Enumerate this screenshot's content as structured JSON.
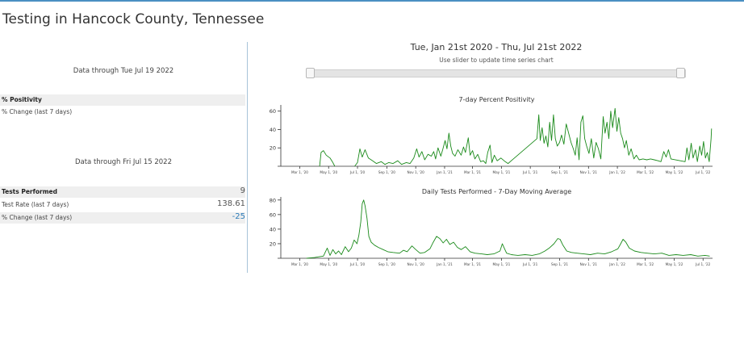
{
  "page": {
    "title": "Testing in Hancock County, Tennessee"
  },
  "positivity_panel": {
    "as_of": "Data through Tue Jul 19 2022",
    "rows": [
      {
        "label": "% Positivity",
        "value": ""
      },
      {
        "label": "% Change (last 7 days)",
        "value": ""
      }
    ]
  },
  "tests_panel": {
    "as_of": "Data through Fri Jul 15 2022",
    "rows": [
      {
        "label": "Tests Performed",
        "value": "9"
      },
      {
        "label": "Test Rate (last 7 days)",
        "value": "138.61"
      },
      {
        "label": "% Change (last 7 days)",
        "value": "-25"
      }
    ]
  },
  "time_range": {
    "label": "Tue, Jan 21st 2020 - Thu, Jul 21st 2022",
    "hint": "Use slider to update time series chart"
  },
  "colors": {
    "line": "#1a8a1a",
    "accent": "#2b7bb9"
  },
  "chart_data": [
    {
      "type": "line",
      "title": "7-day Percent Positivity",
      "xlabel": "",
      "ylabel": "",
      "x_ticks": [
        "Mar 1, '20",
        "May 1, '20",
        "Jul 1, '20",
        "Sep 1, '20",
        "Nov 1, '20",
        "Jan 1, '21",
        "Mar 1, '21",
        "May 1, '21",
        "Jul 1, '21",
        "Sep 1, '21",
        "Nov 1, '21",
        "Jan 1, '22",
        "Mar 1, '22",
        "May 1, '22",
        "Jul 1, '22"
      ],
      "y_ticks": [
        "20",
        "40",
        "60"
      ],
      "x_range": [
        "2020-01-21",
        "2022-07-21"
      ],
      "ylim": [
        0,
        65
      ],
      "series": [
        {
          "points": [
            [
              "2020-04-12",
              0
            ],
            [
              "2020-04-15",
              15
            ],
            [
              "2020-04-20",
              17
            ],
            [
              "2020-04-26",
              12
            ],
            [
              "2020-05-04",
              9
            ],
            [
              "2020-05-10",
              4
            ],
            [
              "2020-05-14",
              0
            ],
            [
              "2020-06-25",
              0
            ],
            [
              "2020-07-01",
              4
            ],
            [
              "2020-07-06",
              19
            ],
            [
              "2020-07-11",
              10
            ],
            [
              "2020-07-17",
              18
            ],
            [
              "2020-07-24",
              9
            ],
            [
              "2020-08-02",
              6
            ],
            [
              "2020-08-10",
              3
            ],
            [
              "2020-08-20",
              5
            ],
            [
              "2020-08-28",
              2
            ],
            [
              "2020-09-05",
              4
            ],
            [
              "2020-09-14",
              3
            ],
            [
              "2020-09-24",
              6
            ],
            [
              "2020-10-02",
              2
            ],
            [
              "2020-10-12",
              4
            ],
            [
              "2020-10-20",
              3
            ],
            [
              "2020-10-28",
              9
            ],
            [
              "2020-11-03",
              19
            ],
            [
              "2020-11-08",
              10
            ],
            [
              "2020-11-14",
              16
            ],
            [
              "2020-11-20",
              7
            ],
            [
              "2020-11-27",
              13
            ],
            [
              "2020-12-04",
              11
            ],
            [
              "2020-12-09",
              16
            ],
            [
              "2020-12-13",
              8
            ],
            [
              "2020-12-18",
              20
            ],
            [
              "2020-12-24",
              11
            ],
            [
              "2020-12-28",
              18
            ],
            [
              "2021-01-02",
              28
            ],
            [
              "2021-01-06",
              19
            ],
            [
              "2021-01-10",
              36
            ],
            [
              "2021-01-14",
              22
            ],
            [
              "2021-01-18",
              14
            ],
            [
              "2021-01-23",
              11
            ],
            [
              "2021-01-29",
              18
            ],
            [
              "2021-02-05",
              12
            ],
            [
              "2021-02-10",
              21
            ],
            [
              "2021-02-14",
              15
            ],
            [
              "2021-02-20",
              31
            ],
            [
              "2021-02-24",
              12
            ],
            [
              "2021-03-01",
              17
            ],
            [
              "2021-03-06",
              8
            ],
            [
              "2021-03-12",
              13
            ],
            [
              "2021-03-18",
              5
            ],
            [
              "2021-03-24",
              6
            ],
            [
              "2021-03-29",
              3
            ],
            [
              "2021-04-02",
              15
            ],
            [
              "2021-04-07",
              23
            ],
            [
              "2021-04-11",
              4
            ],
            [
              "2021-04-16",
              12
            ],
            [
              "2021-04-22",
              6
            ],
            [
              "2021-04-30",
              9
            ],
            [
              "2021-05-09",
              5
            ],
            [
              "2021-05-15",
              3
            ],
            [
              "2021-07-15",
              30
            ],
            [
              "2021-07-19",
              56
            ],
            [
              "2021-07-22",
              28
            ],
            [
              "2021-07-26",
              42
            ],
            [
              "2021-07-30",
              25
            ],
            [
              "2021-08-03",
              33
            ],
            [
              "2021-08-07",
              21
            ],
            [
              "2021-08-11",
              48
            ],
            [
              "2021-08-15",
              28
            ],
            [
              "2021-08-19",
              56
            ],
            [
              "2021-08-23",
              30
            ],
            [
              "2021-08-27",
              22
            ],
            [
              "2021-09-01",
              26
            ],
            [
              "2021-09-05",
              34
            ],
            [
              "2021-09-10",
              24
            ],
            [
              "2021-09-15",
              46
            ],
            [
              "2021-09-20",
              36
            ],
            [
              "2021-09-25",
              26
            ],
            [
              "2021-09-30",
              19
            ],
            [
              "2021-10-04",
              12
            ],
            [
              "2021-10-08",
              31
            ],
            [
              "2021-10-12",
              7
            ],
            [
              "2021-10-16",
              48
            ],
            [
              "2021-10-20",
              55
            ],
            [
              "2021-10-24",
              30
            ],
            [
              "2021-10-28",
              22
            ],
            [
              "2021-11-02",
              14
            ],
            [
              "2021-11-07",
              30
            ],
            [
              "2021-11-12",
              9
            ],
            [
              "2021-11-17",
              26
            ],
            [
              "2021-11-22",
              19
            ],
            [
              "2021-11-27",
              8
            ],
            [
              "2021-12-02",
              54
            ],
            [
              "2021-12-06",
              36
            ],
            [
              "2021-12-10",
              48
            ],
            [
              "2021-12-14",
              30
            ],
            [
              "2021-12-18",
              60
            ],
            [
              "2021-12-22",
              42
            ],
            [
              "2021-12-27",
              63
            ],
            [
              "2021-12-31",
              38
            ],
            [
              "2022-01-04",
              53
            ],
            [
              "2022-01-08",
              36
            ],
            [
              "2022-01-12",
              30
            ],
            [
              "2022-01-16",
              20
            ],
            [
              "2022-01-20",
              28
            ],
            [
              "2022-01-25",
              12
            ],
            [
              "2022-01-30",
              19
            ],
            [
              "2022-02-05",
              8
            ],
            [
              "2022-02-10",
              12
            ],
            [
              "2022-02-16",
              7
            ],
            [
              "2022-02-24",
              8
            ],
            [
              "2022-03-04",
              7
            ],
            [
              "2022-03-12",
              8
            ],
            [
              "2022-03-20",
              7
            ],
            [
              "2022-03-28",
              6
            ],
            [
              "2022-04-03",
              5
            ],
            [
              "2022-04-09",
              16
            ],
            [
              "2022-04-14",
              10
            ],
            [
              "2022-04-19",
              18
            ],
            [
              "2022-04-24",
              8
            ],
            [
              "2022-05-24",
              5
            ],
            [
              "2022-05-28",
              20
            ],
            [
              "2022-06-01",
              7
            ],
            [
              "2022-06-06",
              25
            ],
            [
              "2022-06-10",
              9
            ],
            [
              "2022-06-15",
              18
            ],
            [
              "2022-06-19",
              5
            ],
            [
              "2022-06-24",
              22
            ],
            [
              "2022-06-28",
              12
            ],
            [
              "2022-07-02",
              27
            ],
            [
              "2022-07-06",
              9
            ],
            [
              "2022-07-10",
              15
            ],
            [
              "2022-07-14",
              5
            ],
            [
              "2022-07-18",
              30
            ],
            [
              "2022-07-19",
              41
            ]
          ]
        }
      ]
    },
    {
      "type": "line",
      "title": "Daily Tests Performed - 7-Day Moving Average",
      "xlabel": "",
      "ylabel": "",
      "x_ticks": [
        "Mar 1, '20",
        "May 1, '20",
        "Jul 1, '20",
        "Sep 1, '20",
        "Nov 1, '20",
        "Jan 1, '21",
        "Mar 1, '21",
        "May 1, '21",
        "Jul 1, '21",
        "Sep 1, '21",
        "Nov 1, '21",
        "Jan 1, '22",
        "Mar 1, '22",
        "May 1, '22",
        "Jul 1, '22"
      ],
      "y_ticks": [
        "20",
        "40",
        "60",
        "80"
      ],
      "x_range": [
        "2020-01-21",
        "2022-07-21"
      ],
      "ylim": [
        0,
        82
      ],
      "series": [
        {
          "points": [
            [
              "2020-01-21",
              0
            ],
            [
              "2020-03-15",
              0
            ],
            [
              "2020-04-01",
              1
            ],
            [
              "2020-04-10",
              2
            ],
            [
              "2020-04-20",
              3
            ],
            [
              "2020-04-28",
              14
            ],
            [
              "2020-05-04",
              4
            ],
            [
              "2020-05-10",
              12
            ],
            [
              "2020-05-16",
              6
            ],
            [
              "2020-05-22",
              10
            ],
            [
              "2020-05-28",
              5
            ],
            [
              "2020-06-05",
              16
            ],
            [
              "2020-06-12",
              9
            ],
            [
              "2020-06-18",
              14
            ],
            [
              "2020-06-24",
              25
            ],
            [
              "2020-06-30",
              20
            ],
            [
              "2020-07-04",
              32
            ],
            [
              "2020-07-08",
              50
            ],
            [
              "2020-07-11",
              75
            ],
            [
              "2020-07-14",
              80
            ],
            [
              "2020-07-17",
              72
            ],
            [
              "2020-07-21",
              55
            ],
            [
              "2020-07-25",
              30
            ],
            [
              "2020-07-30",
              22
            ],
            [
              "2020-08-06",
              18
            ],
            [
              "2020-08-14",
              15
            ],
            [
              "2020-08-24",
              12
            ],
            [
              "2020-09-03",
              9
            ],
            [
              "2020-09-14",
              8
            ],
            [
              "2020-09-28",
              7
            ],
            [
              "2020-10-06",
              11
            ],
            [
              "2020-10-14",
              9
            ],
            [
              "2020-10-24",
              17
            ],
            [
              "2020-11-01",
              12
            ],
            [
              "2020-11-10",
              7
            ],
            [
              "2020-11-20",
              8
            ],
            [
              "2020-12-01",
              13
            ],
            [
              "2020-12-08",
              22
            ],
            [
              "2020-12-15",
              30
            ],
            [
              "2020-12-22",
              27
            ],
            [
              "2020-12-29",
              21
            ],
            [
              "2021-01-05",
              26
            ],
            [
              "2021-01-12",
              19
            ],
            [
              "2021-01-20",
              22
            ],
            [
              "2021-01-28",
              15
            ],
            [
              "2021-02-05",
              12
            ],
            [
              "2021-02-14",
              16
            ],
            [
              "2021-02-24",
              9
            ],
            [
              "2021-03-06",
              7
            ],
            [
              "2021-03-20",
              6
            ],
            [
              "2021-04-01",
              5
            ],
            [
              "2021-04-15",
              6
            ],
            [
              "2021-04-28",
              10
            ],
            [
              "2021-05-03",
              20
            ],
            [
              "2021-05-07",
              14
            ],
            [
              "2021-05-12",
              7
            ],
            [
              "2021-05-22",
              5
            ],
            [
              "2021-06-05",
              4
            ],
            [
              "2021-06-20",
              5
            ],
            [
              "2021-07-05",
              4
            ],
            [
              "2021-07-20",
              6
            ],
            [
              "2021-08-01",
              10
            ],
            [
              "2021-08-10",
              14
            ],
            [
              "2021-08-20",
              20
            ],
            [
              "2021-08-28",
              27
            ],
            [
              "2021-09-02",
              26
            ],
            [
              "2021-09-08",
              18
            ],
            [
              "2021-09-16",
              10
            ],
            [
              "2021-09-26",
              8
            ],
            [
              "2021-10-08",
              7
            ],
            [
              "2021-10-22",
              6
            ],
            [
              "2021-11-05",
              5
            ],
            [
              "2021-11-20",
              7
            ],
            [
              "2021-12-05",
              6
            ],
            [
              "2021-12-20",
              9
            ],
            [
              "2022-01-02",
              13
            ],
            [
              "2022-01-08",
              20
            ],
            [
              "2022-01-13",
              26
            ],
            [
              "2022-01-19",
              22
            ],
            [
              "2022-01-26",
              14
            ],
            [
              "2022-02-06",
              10
            ],
            [
              "2022-02-20",
              8
            ],
            [
              "2022-03-05",
              7
            ],
            [
              "2022-03-20",
              6
            ],
            [
              "2022-04-05",
              7
            ],
            [
              "2022-04-20",
              4
            ],
            [
              "2022-05-05",
              5
            ],
            [
              "2022-05-20",
              4
            ],
            [
              "2022-06-05",
              5
            ],
            [
              "2022-06-20",
              3
            ],
            [
              "2022-07-05",
              4
            ],
            [
              "2022-07-15",
              3
            ]
          ]
        }
      ]
    }
  ]
}
